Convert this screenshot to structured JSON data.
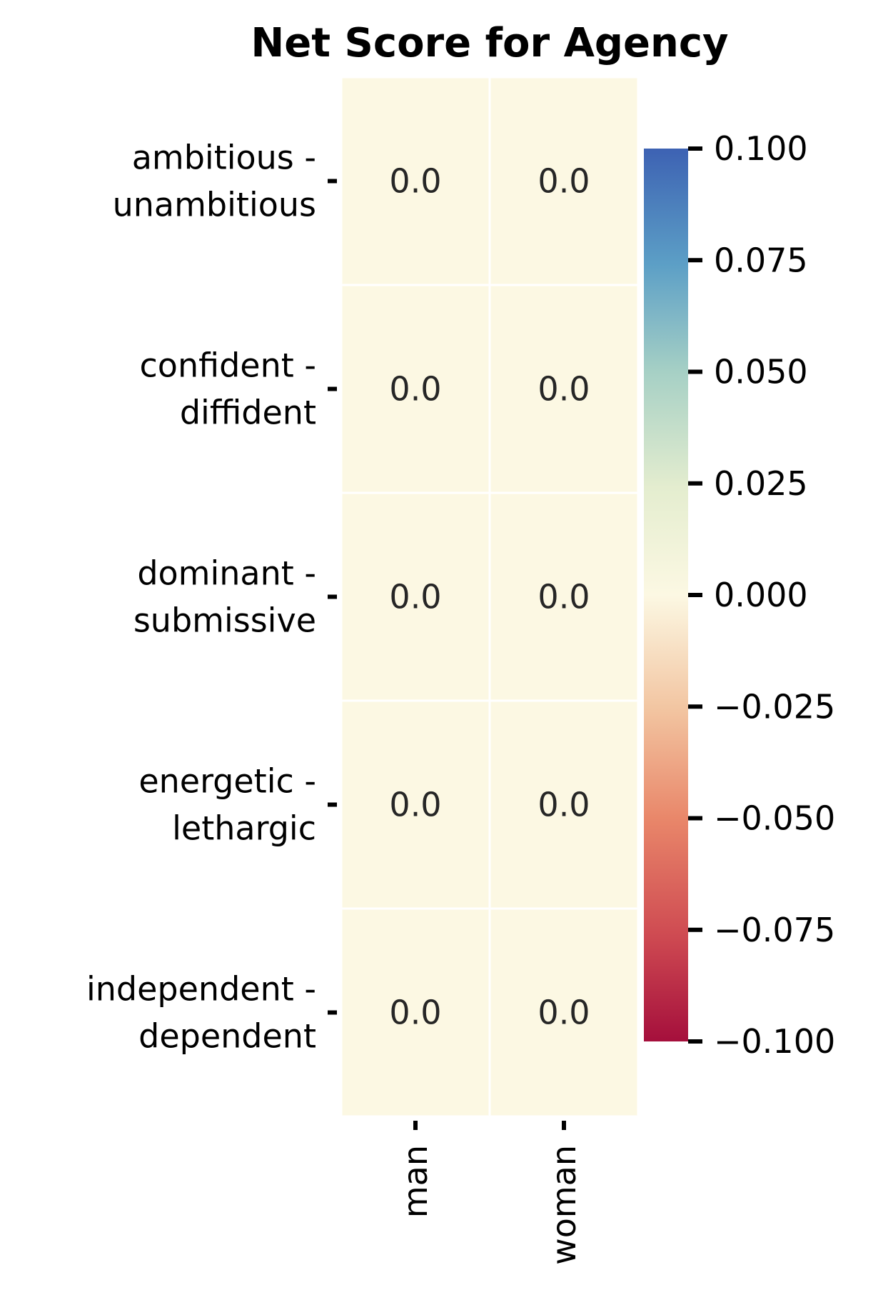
{
  "chart_data": {
    "type": "heatmap",
    "title": "Net Score for Agency",
    "xlabel": "",
    "ylabel": "",
    "columns": [
      "man",
      "woman"
    ],
    "rows": [
      [
        "ambitious -",
        "unambitious"
      ],
      [
        "confident -",
        "diffident"
      ],
      [
        "dominant -",
        "submissive"
      ],
      [
        "energetic -",
        "lethargic"
      ],
      [
        "independent -",
        "dependent"
      ]
    ],
    "values": [
      [
        0.0,
        0.0
      ],
      [
        0.0,
        0.0
      ],
      [
        0.0,
        0.0
      ],
      [
        0.0,
        0.0
      ],
      [
        0.0,
        0.0
      ]
    ],
    "cell_labels": [
      [
        "0.0",
        "0.0"
      ],
      [
        "0.0",
        "0.0"
      ],
      [
        "0.0",
        "0.0"
      ],
      [
        "0.0",
        "0.0"
      ],
      [
        "0.0",
        "0.0"
      ]
    ],
    "colorbar": {
      "vmin": -0.1,
      "vmax": 0.1,
      "ticks": [
        0.1,
        0.075,
        0.05,
        0.025,
        0.0,
        -0.025,
        -0.05,
        -0.075,
        -0.1
      ],
      "tick_labels": [
        "0.100",
        "0.075",
        "0.050",
        "0.025",
        "0.000",
        "−0.025",
        "−0.050",
        "−0.075",
        "−0.100"
      ],
      "colormap": [
        "#a50026",
        "#d73027",
        "#f46d43",
        "#fdae61",
        "#fee090",
        "#ffffbf",
        "#e0f3f8",
        "#abd9e9",
        "#74add1",
        "#4575b4",
        "#313695"
      ],
      "cell_color": "#fcf8e3",
      "cmap_name": "RdYlBu"
    },
    "grid": false,
    "legend": "right"
  }
}
